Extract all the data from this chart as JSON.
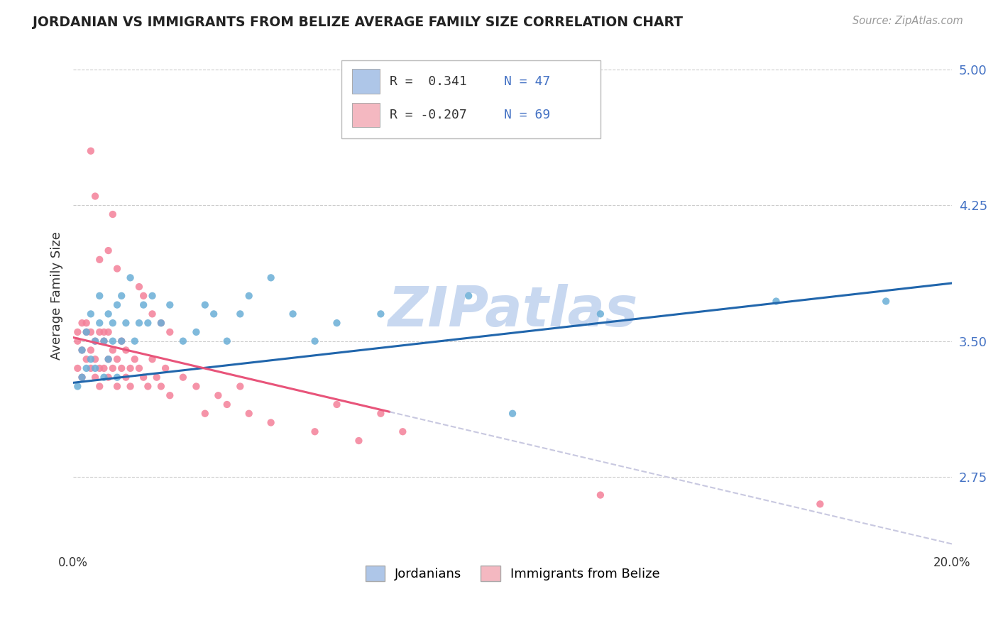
{
  "title": "JORDANIAN VS IMMIGRANTS FROM BELIZE AVERAGE FAMILY SIZE CORRELATION CHART",
  "source": "Source: ZipAtlas.com",
  "ylabel": "Average Family Size",
  "xmin": 0.0,
  "xmax": 0.2,
  "ymin": 2.35,
  "ymax": 5.15,
  "yticks": [
    2.75,
    3.5,
    4.25,
    5.0
  ],
  "background_color": "#ffffff",
  "grid_color": "#cccccc",
  "legend_r1": "R =  0.341",
  "legend_n1": "N = 47",
  "legend_r2": "R = -0.207",
  "legend_n2": "N = 69",
  "legend_color1": "#aec6e8",
  "legend_color2": "#f4b8c1",
  "watermark": "ZIPatlas",
  "watermark_color": "#c8d8f0",
  "series1_color": "#6aaed6",
  "series2_color": "#f48099",
  "trendline1_color": "#2166ac",
  "trendline2_color": "#e8547a",
  "trendline2_dash_color": "#c8c8e0",
  "trendline1_x0": 0.0,
  "trendline1_y0": 3.27,
  "trendline1_x1": 0.2,
  "trendline1_y1": 3.82,
  "trendline2_x0": 0.0,
  "trendline2_y0": 3.52,
  "trendline2_x1": 0.2,
  "trendline2_y1": 2.38,
  "trendline2_solid_end_x": 0.072,
  "jordanians_x": [
    0.001,
    0.002,
    0.002,
    0.003,
    0.003,
    0.004,
    0.004,
    0.005,
    0.005,
    0.006,
    0.006,
    0.007,
    0.007,
    0.008,
    0.008,
    0.009,
    0.009,
    0.01,
    0.01,
    0.011,
    0.011,
    0.012,
    0.013,
    0.014,
    0.015,
    0.016,
    0.017,
    0.018,
    0.02,
    0.022,
    0.025,
    0.028,
    0.03,
    0.032,
    0.035,
    0.038,
    0.04,
    0.045,
    0.05,
    0.055,
    0.06,
    0.07,
    0.09,
    0.1,
    0.12,
    0.16,
    0.185
  ],
  "jordanians_y": [
    3.25,
    3.45,
    3.3,
    3.55,
    3.35,
    3.65,
    3.4,
    3.5,
    3.35,
    3.6,
    3.75,
    3.5,
    3.3,
    3.65,
    3.4,
    3.5,
    3.6,
    3.7,
    3.3,
    3.75,
    3.5,
    3.6,
    3.85,
    3.5,
    3.6,
    3.7,
    3.6,
    3.75,
    3.6,
    3.7,
    3.5,
    3.55,
    3.7,
    3.65,
    3.5,
    3.65,
    3.75,
    3.85,
    3.65,
    3.5,
    3.6,
    3.65,
    3.75,
    3.1,
    3.65,
    3.72,
    3.72
  ],
  "belize_x": [
    0.001,
    0.001,
    0.001,
    0.002,
    0.002,
    0.002,
    0.003,
    0.003,
    0.003,
    0.004,
    0.004,
    0.004,
    0.005,
    0.005,
    0.005,
    0.006,
    0.006,
    0.006,
    0.007,
    0.007,
    0.007,
    0.008,
    0.008,
    0.008,
    0.009,
    0.009,
    0.01,
    0.01,
    0.011,
    0.011,
    0.012,
    0.012,
    0.013,
    0.013,
    0.014,
    0.015,
    0.016,
    0.017,
    0.018,
    0.019,
    0.02,
    0.021,
    0.022,
    0.025,
    0.028,
    0.03,
    0.033,
    0.038,
    0.04,
    0.045,
    0.055,
    0.06,
    0.065,
    0.07,
    0.075,
    0.015,
    0.016,
    0.018,
    0.02,
    0.022,
    0.008,
    0.009,
    0.01,
    0.004,
    0.005,
    0.006,
    0.12,
    0.035,
    0.17
  ],
  "belize_y": [
    3.5,
    3.55,
    3.35,
    3.6,
    3.45,
    3.3,
    3.55,
    3.4,
    3.6,
    3.45,
    3.55,
    3.35,
    3.5,
    3.4,
    3.3,
    3.55,
    3.35,
    3.25,
    3.5,
    3.35,
    3.55,
    3.4,
    3.3,
    3.55,
    3.35,
    3.45,
    3.4,
    3.25,
    3.35,
    3.5,
    3.3,
    3.45,
    3.35,
    3.25,
    3.4,
    3.35,
    3.3,
    3.25,
    3.4,
    3.3,
    3.25,
    3.35,
    3.2,
    3.3,
    3.25,
    3.1,
    3.2,
    3.25,
    3.1,
    3.05,
    3.0,
    3.15,
    2.95,
    3.1,
    3.0,
    3.8,
    3.75,
    3.65,
    3.6,
    3.55,
    4.0,
    4.2,
    3.9,
    4.55,
    4.3,
    3.95,
    2.65,
    3.15,
    2.6
  ]
}
